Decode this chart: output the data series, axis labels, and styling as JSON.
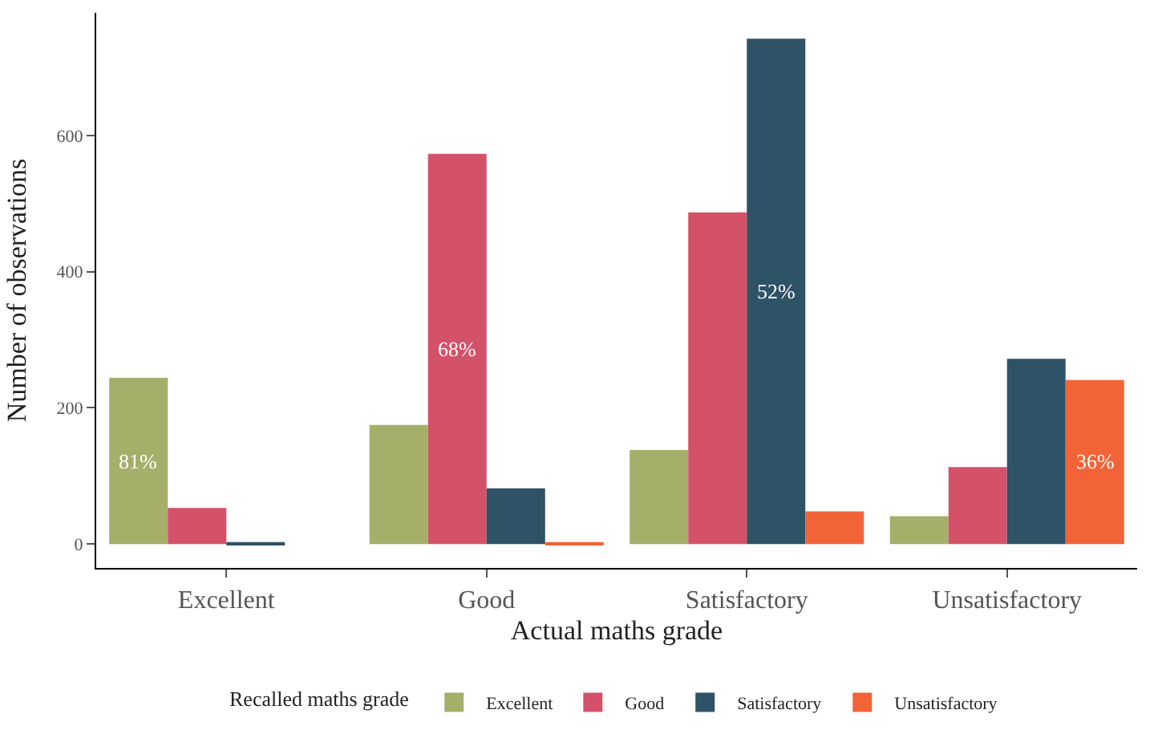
{
  "chart_data": {
    "type": "bar",
    "xlabel": "Actual maths grade",
    "ylabel": "Number of observations",
    "legend_title": "Recalled maths grade",
    "categories": [
      "Excellent",
      "Good",
      "Satisfactory",
      "Unsatisfactory"
    ],
    "series": [
      {
        "name": "Excellent",
        "color": "#a5af69",
        "values": [
          244,
          175,
          138,
          41
        ]
      },
      {
        "name": "Good",
        "color": "#d3526a",
        "values": [
          53,
          573,
          487,
          113
        ]
      },
      {
        "name": "Satisfactory",
        "color": "#2e5266",
        "values": [
          3,
          82,
          742,
          272
        ]
      },
      {
        "name": "Unsatisfactory",
        "color": "#f26337",
        "values": [
          0,
          3,
          48,
          241
        ]
      }
    ],
    "annotations": [
      "81%",
      "68%",
      "52%",
      "36%"
    ],
    "ylim": [
      -35,
      780
    ],
    "yticks": [
      0,
      200,
      400,
      600
    ],
    "grid": false,
    "legend": "bottom"
  }
}
